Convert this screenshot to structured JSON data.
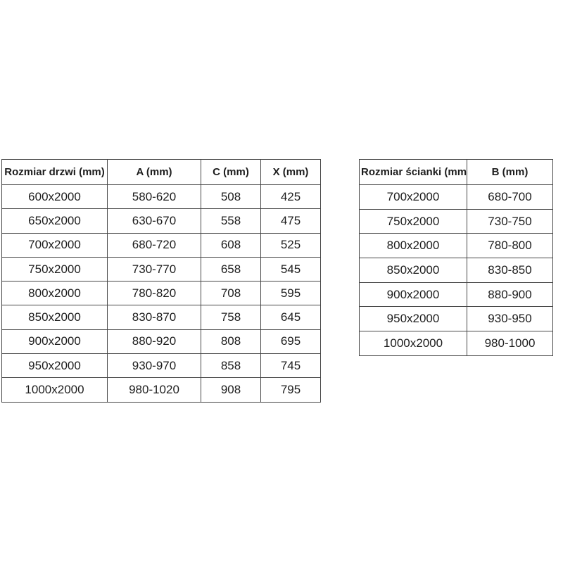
{
  "colors": {
    "background": "#ffffff",
    "text": "#1d1d1d",
    "border": "#474747"
  },
  "tables": [
    {
      "name": "door-dimensions-table",
      "headers": [
        "Rozmiar drzwi (mm)",
        "A (mm)",
        "C (mm)",
        "X (mm)"
      ],
      "rows": [
        [
          "600x2000",
          "580-620",
          "508",
          "425"
        ],
        [
          "650x2000",
          "630-670",
          "558",
          "475"
        ],
        [
          "700x2000",
          "680-720",
          "608",
          "525"
        ],
        [
          "750x2000",
          "730-770",
          "658",
          "545"
        ],
        [
          "800x2000",
          "780-820",
          "708",
          "595"
        ],
        [
          "850x2000",
          "830-870",
          "758",
          "645"
        ],
        [
          "900x2000",
          "880-920",
          "808",
          "695"
        ],
        [
          "950x2000",
          "930-970",
          "858",
          "745"
        ],
        [
          "1000x2000",
          "980-1020",
          "908",
          "795"
        ]
      ]
    },
    {
      "name": "wall-dimensions-table",
      "headers": [
        "Rozmiar ścianki (mm)",
        "B (mm)"
      ],
      "rows": [
        [
          "700x2000",
          "680-700"
        ],
        [
          "750x2000",
          "730-750"
        ],
        [
          "800x2000",
          "780-800"
        ],
        [
          "850x2000",
          "830-850"
        ],
        [
          "900x2000",
          "880-900"
        ],
        [
          "950x2000",
          "930-950"
        ],
        [
          "1000x2000",
          "980-1000"
        ]
      ]
    }
  ]
}
